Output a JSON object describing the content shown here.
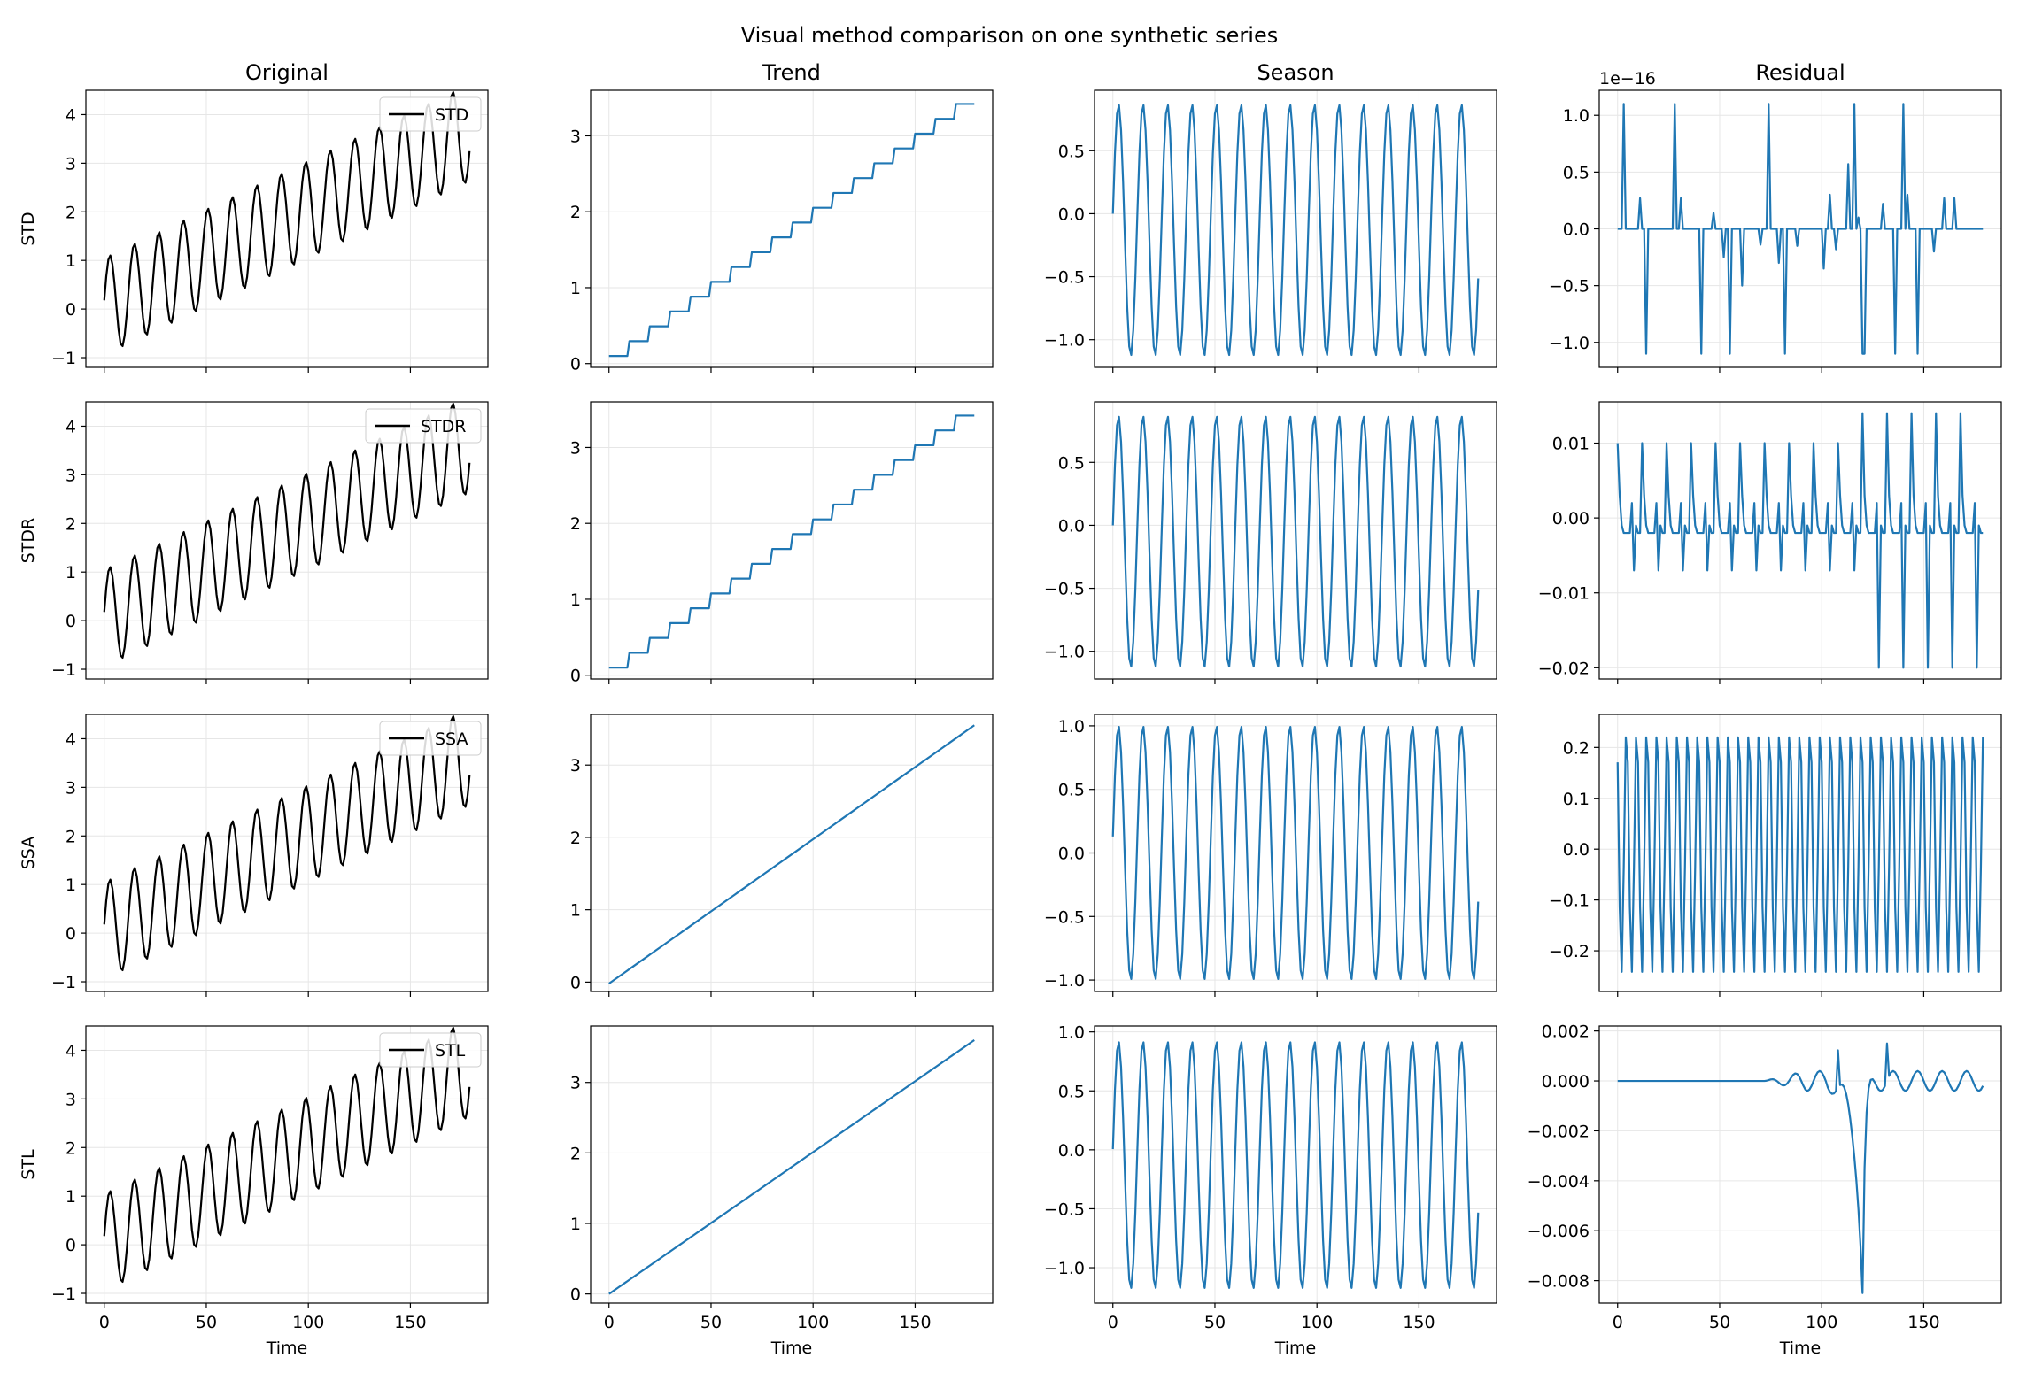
{
  "title": "Visual method comparison on one synthetic series",
  "columns": [
    "Original",
    "Trend",
    "Season",
    "Residual"
  ],
  "rows": [
    "STD",
    "STDR",
    "SSA",
    "STL"
  ],
  "xlabel": "Time",
  "colors": {
    "original": "#000000",
    "component": "#1f77b4",
    "grid": "#e6e6e6"
  },
  "chart_data": {
    "type": "line",
    "n_points": 180,
    "x_range": [
      0,
      179
    ],
    "xlim": [
      -9,
      188
    ],
    "xticks": [
      0,
      50,
      100,
      150
    ],
    "original": {
      "description": "trend + seasonal + small residual, period 12",
      "amplitude": 1.0
    },
    "panels": [
      {
        "row": "STD",
        "col": "Original",
        "legend": "STD",
        "ylim": [
          -1.2,
          4.5
        ],
        "yticks": [
          -1,
          0,
          1,
          2,
          3,
          4
        ],
        "ytick_labels": [
          "−1",
          "0",
          "1",
          "2",
          "3",
          "4"
        ]
      },
      {
        "row": "STD",
        "col": "Trend",
        "kind": "step",
        "step_width": 10,
        "start": 0.1,
        "end": 3.42,
        "ylim": [
          -0.05,
          3.6
        ],
        "yticks": [
          0,
          1,
          2,
          3
        ],
        "ytick_labels": [
          "0",
          "1",
          "2",
          "3"
        ]
      },
      {
        "row": "STD",
        "col": "Season",
        "kind": "sine",
        "period": 12,
        "amplitude": 1.0,
        "offset": -0.13,
        "ylim": [
          -1.22,
          0.98
        ],
        "yticks": [
          -1.0,
          -0.5,
          0.0,
          0.5
        ],
        "ytick_labels": [
          "−1.0",
          "−0.5",
          "0.0",
          "0.5"
        ]
      },
      {
        "row": "STD",
        "col": "Residual",
        "kind": "spikes",
        "offset_text": "1e−16",
        "spikes": [
          [
            3,
            1.1
          ],
          [
            11,
            0.27
          ],
          [
            14,
            -1.1
          ],
          [
            28,
            1.1
          ],
          [
            31,
            0.27
          ],
          [
            41,
            -1.1
          ],
          [
            47,
            0.14
          ],
          [
            52,
            -0.25
          ],
          [
            55,
            -1.1
          ],
          [
            61,
            -0.5
          ],
          [
            70,
            -0.14
          ],
          [
            74,
            1.1
          ],
          [
            79,
            -0.3
          ],
          [
            82,
            -1.1
          ],
          [
            88,
            -0.15
          ],
          [
            101,
            -0.35
          ],
          [
            104,
            0.3
          ],
          [
            107,
            -0.18
          ],
          [
            113,
            0.57
          ],
          [
            116,
            1.1
          ],
          [
            118,
            0.1
          ],
          [
            120,
            -1.1
          ],
          [
            121,
            -1.1
          ],
          [
            130,
            0.22
          ],
          [
            136,
            -1.1
          ],
          [
            140,
            1.1
          ],
          [
            142,
            0.3
          ],
          [
            147,
            -1.1
          ],
          [
            155,
            -0.2
          ],
          [
            160,
            0.27
          ],
          [
            165,
            0.27
          ]
        ],
        "ylim": [
          -1.22,
          1.22
        ],
        "yticks": [
          -1.0,
          -0.5,
          0.0,
          0.5,
          1.0
        ],
        "ytick_labels": [
          "−1.0",
          "−0.5",
          "0.0",
          "0.5",
          "1.0"
        ]
      },
      {
        "row": "STDR",
        "col": "Original",
        "legend": "STDR",
        "ylim": [
          -1.2,
          4.5
        ],
        "yticks": [
          -1,
          0,
          1,
          2,
          3,
          4
        ],
        "ytick_labels": [
          "−1",
          "0",
          "1",
          "2",
          "3",
          "4"
        ]
      },
      {
        "row": "STDR",
        "col": "Trend",
        "kind": "step",
        "step_width": 10,
        "start": 0.1,
        "end": 3.42,
        "ylim": [
          -0.05,
          3.6
        ],
        "yticks": [
          0,
          1,
          2,
          3
        ],
        "ytick_labels": [
          "0",
          "1",
          "2",
          "3"
        ]
      },
      {
        "row": "STDR",
        "col": "Season",
        "kind": "sine",
        "period": 12,
        "amplitude": 1.0,
        "offset": -0.13,
        "ylim": [
          -1.22,
          0.98
        ],
        "yticks": [
          -1.0,
          -0.5,
          0.0,
          0.5
        ],
        "ytick_labels": [
          "−1.0",
          "−0.5",
          "0.0",
          "0.5"
        ]
      },
      {
        "row": "STDR",
        "col": "Residual",
        "kind": "period_pattern",
        "period": 12,
        "base": -0.002,
        "pos_peak": 0.01,
        "neg_peak": -0.007,
        "later_pos_peak": 0.014,
        "later_neg_peak": -0.02,
        "change_at": 120,
        "ylim": [
          -0.0215,
          0.0155
        ],
        "yticks": [
          -0.02,
          -0.01,
          0.0,
          0.01
        ],
        "ytick_labels": [
          "−0.02",
          "−0.01",
          "0.00",
          "0.01"
        ]
      },
      {
        "row": "SSA",
        "col": "Original",
        "legend": "SSA",
        "ylim": [
          -1.2,
          4.5
        ],
        "yticks": [
          -1,
          0,
          1,
          2,
          3,
          4
        ],
        "ytick_labels": [
          "−1",
          "0",
          "1",
          "2",
          "3",
          "4"
        ]
      },
      {
        "row": "SSA",
        "col": "Trend",
        "kind": "smooth",
        "start": -0.02,
        "end": 3.55,
        "ylim": [
          -0.13,
          3.7
        ],
        "yticks": [
          0,
          1,
          2,
          3
        ],
        "ytick_labels": [
          "0",
          "1",
          "2",
          "3"
        ]
      },
      {
        "row": "SSA",
        "col": "Season",
        "kind": "sine",
        "period": 12,
        "amplitude": 1.0,
        "offset": 0.0,
        "ylim": [
          -1.09,
          1.09
        ],
        "yticks": [
          -1.0,
          -0.5,
          0.0,
          0.5,
          1.0
        ],
        "ytick_labels": [
          "−1.0",
          "−0.5",
          "0.0",
          "0.5",
          "1.0"
        ]
      },
      {
        "row": "SSA",
        "col": "Residual",
        "kind": "fast_sine",
        "period": 5,
        "amplitude": 0.245,
        "ylim": [
          -0.28,
          0.265
        ],
        "yticks": [
          -0.2,
          -0.1,
          0.0,
          0.1,
          0.2
        ],
        "ytick_labels": [
          "−0.2",
          "−0.1",
          "0.0",
          "0.1",
          "0.2"
        ]
      },
      {
        "row": "STL",
        "col": "Original",
        "legend": "STL",
        "ylim": [
          -1.2,
          4.5
        ],
        "yticks": [
          -1,
          0,
          1,
          2,
          3,
          4
        ],
        "ytick_labels": [
          "−1",
          "0",
          "1",
          "2",
          "3",
          "4"
        ]
      },
      {
        "row": "STL",
        "col": "Trend",
        "kind": "smooth",
        "start": 0.0,
        "end": 3.6,
        "ylim": [
          -0.13,
          3.8
        ],
        "yticks": [
          0,
          1,
          2,
          3
        ],
        "ytick_labels": [
          "0",
          "1",
          "2",
          "3"
        ]
      },
      {
        "row": "STL",
        "col": "Season",
        "kind": "sine",
        "period": 12,
        "amplitude": 1.05,
        "offset": -0.13,
        "ylim": [
          -1.3,
          1.05
        ],
        "yticks": [
          -1.0,
          -0.5,
          0.0,
          0.5,
          1.0
        ],
        "ytick_labels": [
          "−1.0",
          "−0.5",
          "0.0",
          "0.5",
          "1.0"
        ]
      },
      {
        "row": "STL",
        "col": "Residual",
        "kind": "dip",
        "dip_at": 120,
        "dip_value": -0.0085,
        "ylim": [
          -0.0089,
          0.0022
        ],
        "yticks": [
          -0.008,
          -0.006,
          -0.004,
          -0.002,
          0.0,
          0.002
        ],
        "ytick_labels": [
          "−0.008",
          "−0.006",
          "−0.004",
          "−0.002",
          "0.000",
          "0.002"
        ]
      }
    ]
  }
}
